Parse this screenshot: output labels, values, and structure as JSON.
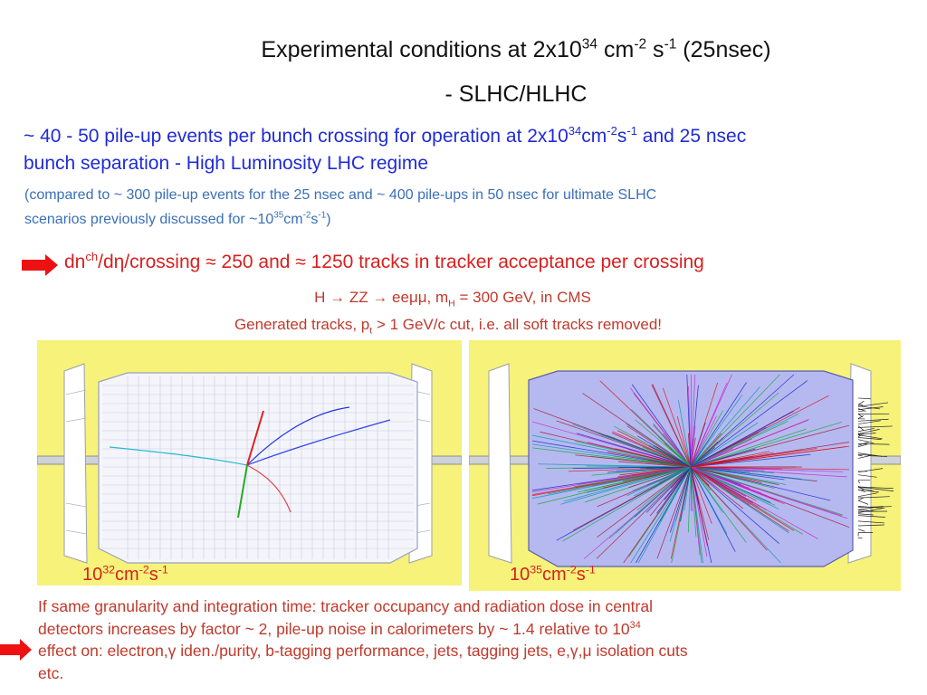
{
  "title": {
    "line1_prefix": "Experimental conditions at 2x10",
    "line1_exp": "34",
    "line1_mid1": " cm",
    "line1_exp2": "-2",
    "line1_mid2": " s",
    "line1_exp3": "-1",
    "line1_suffix": " (25nsec)",
    "line2": "- SLHC/HLHC"
  },
  "pileup": {
    "p1": "~ 40 - 50 pile-up events per bunch crossing for operation at 2x10",
    "e1": "34",
    "p2": "cm",
    "e2": "-2",
    "p3": "s",
    "e3": "-1",
    "p4": " and 25 nsec",
    "line2": "bunch separation - High Luminosity LHC regime"
  },
  "compare": {
    "line1": "(compared to ~ 300 pile-up events for the 25 nsec and ~ 400 pile-ups in 50 nsec for ultimate SLHC",
    "line2_pre": "scenarios previously discussed for  ~10",
    "e1": "35",
    "p2": "cm",
    "e2": "-2",
    "p3": "s",
    "e3": "-1",
    "p4": ")"
  },
  "tracks": {
    "a": "dn",
    "sup": "ch",
    "b": "/dη/crossing ≈ 250  and  ≈ 1250 tracks in tracker acceptance per crossing"
  },
  "process": {
    "a": "H → ZZ → eeμμ,  m",
    "sub": "H",
    "b": " = 300 GeV,   in CMS"
  },
  "generated": {
    "a": "Generated tracks,  p",
    "sub": "t",
    "b": " > 1 GeV/c cut, i.e. all soft tracks removed!"
  },
  "left_lumi": {
    "base": "10",
    "exp": "32",
    "u1": "cm",
    "e2": "-2",
    "u2": "s",
    "e3": "-1"
  },
  "right_lumi": {
    "base": "10",
    "exp": "35",
    "u1": "cm",
    "e2": "-2",
    "u2": "s",
    "e3": "-1"
  },
  "bottom": {
    "line1": "If same granularity and integration time:  tracker occupancy and radiation dose in central",
    "line2_pre": "detectors increases by factor ~ 2, pile-up noise in calorimeters by ~ 1.4 relative to 10",
    "line2_exp": "34",
    "line3": "effect on: electron,γ iden./purity, b-tagging performance, jets, tagging jets, e,γ,μ isolation cuts",
    "line4": "etc."
  },
  "colors": {
    "accent_blue": "#1f2bd6",
    "sub_blue": "#3a6fb8",
    "red": "#d81f1f",
    "panel_yellow": "#f6f27a"
  }
}
